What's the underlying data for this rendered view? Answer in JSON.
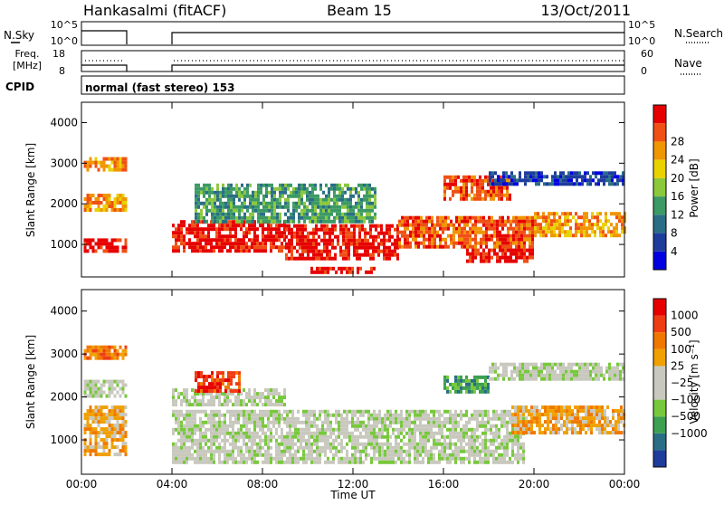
{
  "header": {
    "station": "Hankasalmi (fitACF)",
    "beam": "Beam 15",
    "date": "13/Oct/2011"
  },
  "noise_panel": {
    "left_label": "N.Sky",
    "right_label": "N.Search",
    "left_ticks": [
      "10^5",
      "10^0"
    ],
    "right_ticks": [
      "10^5",
      "10^0"
    ]
  },
  "freq_panel": {
    "left_label_lines": [
      "Freq.",
      "[MHz]"
    ],
    "right_label": "Nave",
    "left_ticks": [
      "18",
      "8"
    ],
    "right_ticks": [
      "60",
      "0"
    ]
  },
  "cpid": {
    "label": "CPID",
    "value": "normal (fast stereo) 153"
  },
  "colors": {
    "power": [
      "#0000e0",
      "#1e3c9c",
      "#2a6e86",
      "#3c9a64",
      "#8cc83c",
      "#e8d200",
      "#f09600",
      "#f05014",
      "#e60000"
    ],
    "velocity": [
      "#1e3c9c",
      "#2a6e86",
      "#3ca050",
      "#78c83c",
      "#c8c8be",
      "#c8c8be",
      "#f0a000",
      "#f07800",
      "#f03c14",
      "#e60000"
    ]
  },
  "chart_data": [
    {
      "type": "heatmap",
      "name": "power",
      "ylabel": "Slant Range [km]",
      "yticks": [
        "1000",
        "2000",
        "3000",
        "4000"
      ],
      "ylim": [
        200,
        4500
      ],
      "xlim": [
        0,
        24
      ],
      "colorbar": {
        "label": "Power [dB]",
        "ticks": [
          "4",
          "8",
          "12",
          "16",
          "20",
          "24",
          "28"
        ]
      },
      "data_gap_hours": [
        2.0,
        4.0
      ],
      "regions": [
        {
          "t": [
            0.1,
            2.0
          ],
          "r": [
            800,
            1150
          ],
          "level": 8
        },
        {
          "t": [
            0.1,
            2.0
          ],
          "r": [
            1850,
            2250
          ],
          "level": 6
        },
        {
          "t": [
            0.1,
            2.0
          ],
          "r": [
            2800,
            3150
          ],
          "level": 6
        },
        {
          "t": [
            4.0,
            9.0
          ],
          "r": [
            800,
            1600
          ],
          "level": 8
        },
        {
          "t": [
            9.0,
            14.0
          ],
          "r": [
            650,
            1500
          ],
          "level": 8
        },
        {
          "t": [
            14.0,
            20.0
          ],
          "r": [
            900,
            1700
          ],
          "level": 7
        },
        {
          "t": [
            16.0,
            19.0
          ],
          "r": [
            2100,
            2700
          ],
          "level": 7
        },
        {
          "t": [
            17.0,
            20.0
          ],
          "r": [
            600,
            900
          ],
          "level": 8
        },
        {
          "t": [
            20.0,
            24.0
          ],
          "r": [
            1200,
            1800
          ],
          "level": 6
        },
        {
          "t": [
            18.0,
            24.0
          ],
          "r": [
            2500,
            2800
          ],
          "level": 1
        },
        {
          "t": [
            5.0,
            13.0
          ],
          "r": [
            1600,
            2500
          ],
          "level": 3
        },
        {
          "t": [
            10.0,
            13.0
          ],
          "r": [
            350,
            450
          ],
          "level": 8
        }
      ]
    },
    {
      "type": "heatmap",
      "name": "velocity",
      "ylabel": "Slant Range [km]",
      "yticks": [
        "1000",
        "2000",
        "3000",
        "4000"
      ],
      "ylim": [
        200,
        4500
      ],
      "xlim": [
        0,
        24
      ],
      "xlabel": "Time UT",
      "xticks": [
        "00:00",
        "04:00",
        "08:00",
        "12:00",
        "16:00",
        "20:00",
        "00:00"
      ],
      "colorbar": {
        "label": "Velocity [m s⁻¹]",
        "ticks": [
          "1000",
          "500",
          "100",
          "25",
          "−25",
          "−100",
          "−500",
          "−1000"
        ]
      },
      "data_gap_hours": [
        2.0,
        4.0
      ],
      "regions": [
        {
          "t": [
            0.1,
            2.0
          ],
          "r": [
            700,
            1800
          ],
          "level": 6
        },
        {
          "t": [
            0.1,
            2.0
          ],
          "r": [
            2000,
            2400
          ],
          "level": 4
        },
        {
          "t": [
            0.1,
            2.0
          ],
          "r": [
            2900,
            3200
          ],
          "level": 7
        },
        {
          "t": [
            4.0,
            19.5
          ],
          "r": [
            500,
            1700
          ],
          "level": 4
        },
        {
          "t": [
            4.0,
            9.0
          ],
          "r": [
            1800,
            2200
          ],
          "level": 4
        },
        {
          "t": [
            5.0,
            7.0
          ],
          "r": [
            2100,
            2600
          ],
          "level": 8
        },
        {
          "t": [
            16.0,
            18.0
          ],
          "r": [
            2100,
            2500
          ],
          "level": 2
        },
        {
          "t": [
            19.0,
            24.0
          ],
          "r": [
            1200,
            1800
          ],
          "level": 6
        },
        {
          "t": [
            18.0,
            24.0
          ],
          "r": [
            2400,
            2800
          ],
          "level": 4
        }
      ]
    }
  ]
}
